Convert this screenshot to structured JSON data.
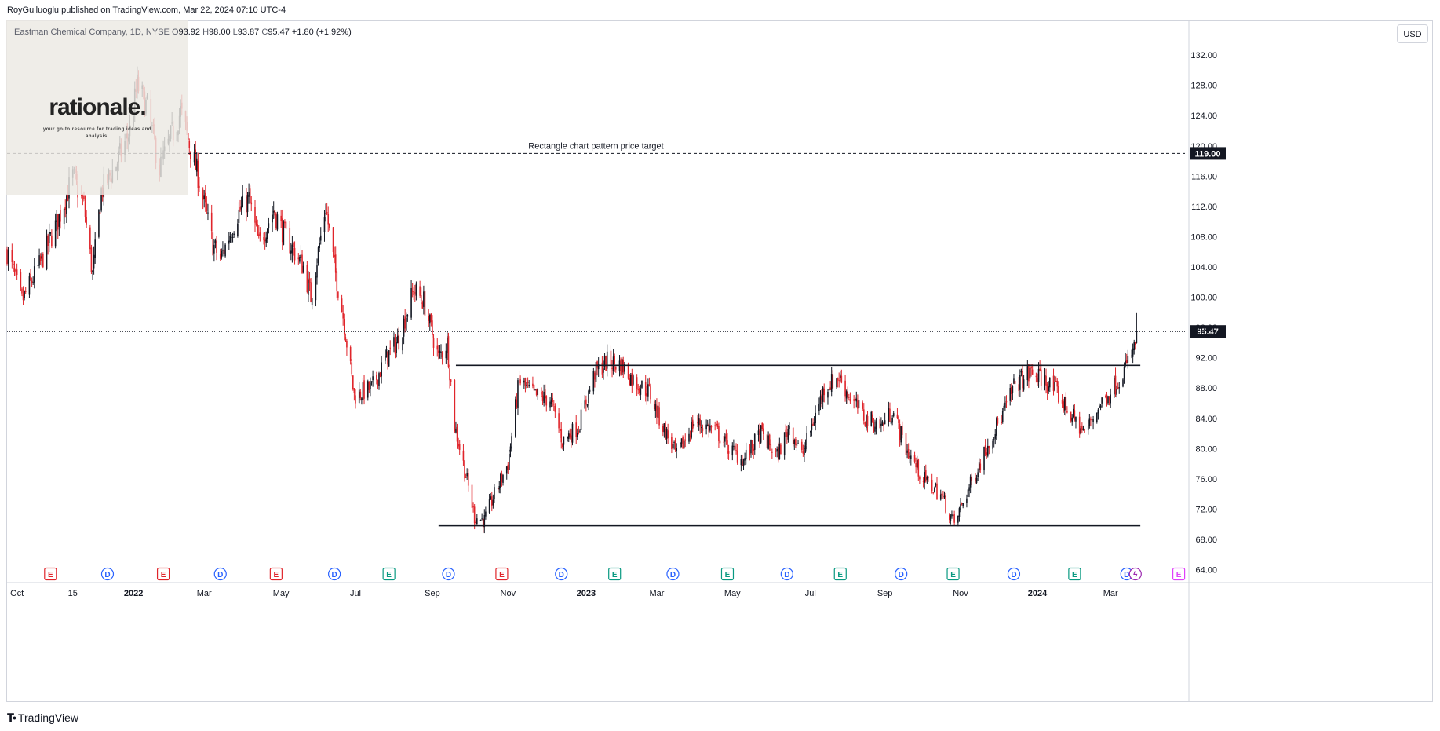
{
  "header": {
    "published": "RoyGulluoglu published on TradingView.com, Mar 22, 2024 07:10 UTC-4"
  },
  "legend": {
    "symbol": "Eastman Chemical Company, 1D, NYSE",
    "open_label": "O",
    "open": "93.92",
    "high_label": "H",
    "high": "98.00",
    "low_label": "L",
    "low": "93.87",
    "close_label": "C",
    "close": "95.47",
    "change": "+1.80 (+1.92%)"
  },
  "watermark": {
    "brand": "rationale.",
    "tagline": "your go-to resource for trading ideas and analysis."
  },
  "currency_button": "USD",
  "footer": {
    "brand": "TradingView"
  },
  "chart_data": {
    "type": "candlestick",
    "title": "Eastman Chemical Company, 1D, NYSE",
    "ylim": [
      62.5,
      134.5
    ],
    "y_ticks": [
      "64.00",
      "68.00",
      "72.00",
      "76.00",
      "80.00",
      "84.00",
      "88.00",
      "92.00",
      "96.00",
      "100.00",
      "104.00",
      "108.00",
      "112.00",
      "116.00",
      "120.00",
      "124.00",
      "128.00",
      "132.00"
    ],
    "x_ticks": [
      {
        "label": "Oct",
        "bold": false,
        "date": "2021-10-01"
      },
      {
        "label": "15",
        "bold": false,
        "date": "2021-11-15"
      },
      {
        "label": "2022",
        "bold": true,
        "date": "2022-01-03"
      },
      {
        "label": "Mar",
        "bold": false,
        "date": "2022-03-01"
      },
      {
        "label": "May",
        "bold": false,
        "date": "2022-05-02"
      },
      {
        "label": "Jul",
        "bold": false,
        "date": "2022-07-01"
      },
      {
        "label": "Sep",
        "bold": false,
        "date": "2022-09-01"
      },
      {
        "label": "Nov",
        "bold": false,
        "date": "2022-11-01"
      },
      {
        "label": "2023",
        "bold": true,
        "date": "2023-01-03"
      },
      {
        "label": "Mar",
        "bold": false,
        "date": "2023-03-01"
      },
      {
        "label": "May",
        "bold": false,
        "date": "2023-05-01"
      },
      {
        "label": "Jul",
        "bold": false,
        "date": "2023-07-03"
      },
      {
        "label": "Sep",
        "bold": false,
        "date": "2023-09-01"
      },
      {
        "label": "Nov",
        "bold": false,
        "date": "2023-11-01"
      },
      {
        "label": "2024",
        "bold": true,
        "date": "2024-01-02"
      },
      {
        "label": "Mar",
        "bold": false,
        "date": "2024-03-01"
      }
    ],
    "price_path": [
      [
        "2021-09-23",
        106.0
      ],
      [
        "2021-10-05",
        99.5
      ],
      [
        "2021-10-20",
        104.5
      ],
      [
        "2021-11-05",
        111.0
      ],
      [
        "2021-11-15",
        116.0
      ],
      [
        "2021-11-24",
        112.0
      ],
      [
        "2021-12-01",
        103.0
      ],
      [
        "2021-12-08",
        114.0
      ],
      [
        "2021-12-20",
        117.5
      ],
      [
        "2021-12-31",
        122.0
      ],
      [
        "2022-01-06",
        128.0
      ],
      [
        "2022-01-14",
        125.0
      ],
      [
        "2022-01-24",
        117.0
      ],
      [
        "2022-02-02",
        121.0
      ],
      [
        "2022-02-10",
        124.5
      ],
      [
        "2022-02-24",
        116.0
      ],
      [
        "2022-03-08",
        107.0
      ],
      [
        "2022-03-14",
        105.0
      ],
      [
        "2022-03-28",
        111.0
      ],
      [
        "2022-04-06",
        113.0
      ],
      [
        "2022-04-14",
        107.0
      ],
      [
        "2022-04-26",
        111.5
      ],
      [
        "2022-05-04",
        108.5
      ],
      [
        "2022-05-20",
        104.0
      ],
      [
        "2022-05-26",
        100.0
      ],
      [
        "2022-06-07",
        112.0
      ],
      [
        "2022-06-14",
        104.0
      ],
      [
        "2022-06-21",
        97.5
      ],
      [
        "2022-06-30",
        87.0
      ],
      [
        "2022-07-14",
        88.0
      ],
      [
        "2022-07-26",
        92.0
      ],
      [
        "2022-08-05",
        94.5
      ],
      [
        "2022-08-17",
        101.0
      ],
      [
        "2022-08-25",
        99.5
      ],
      [
        "2022-09-06",
        92.0
      ],
      [
        "2022-09-13",
        94.0
      ],
      [
        "2022-09-19",
        83.0
      ],
      [
        "2022-09-26",
        78.0
      ],
      [
        "2022-10-05",
        71.0
      ],
      [
        "2022-10-13",
        70.5
      ],
      [
        "2022-10-20",
        73.5
      ],
      [
        "2022-11-01",
        78.0
      ],
      [
        "2022-11-10",
        89.0
      ],
      [
        "2022-11-22",
        87.0
      ],
      [
        "2022-12-05",
        86.5
      ],
      [
        "2022-12-15",
        81.0
      ],
      [
        "2022-12-28",
        83.0
      ],
      [
        "2023-01-10",
        90.0
      ],
      [
        "2023-01-20",
        91.5
      ],
      [
        "2023-02-01",
        91.0
      ],
      [
        "2023-02-10",
        89.0
      ],
      [
        "2023-02-23",
        87.5
      ],
      [
        "2023-03-03",
        84.0
      ],
      [
        "2023-03-17",
        79.0
      ],
      [
        "2023-03-31",
        83.5
      ],
      [
        "2023-04-17",
        82.5
      ],
      [
        "2023-04-28",
        80.0
      ],
      [
        "2023-05-10",
        78.5
      ],
      [
        "2023-05-24",
        82.0
      ],
      [
        "2023-06-06",
        79.0
      ],
      [
        "2023-06-16",
        83.0
      ],
      [
        "2023-06-26",
        79.0
      ],
      [
        "2023-07-06",
        84.0
      ],
      [
        "2023-07-14",
        88.0
      ],
      [
        "2023-07-26",
        89.5
      ],
      [
        "2023-08-03",
        87.0
      ],
      [
        "2023-08-16",
        84.0
      ],
      [
        "2023-08-29",
        83.0
      ],
      [
        "2023-09-07",
        85.0
      ],
      [
        "2023-09-18",
        80.0
      ],
      [
        "2023-10-02",
        76.0
      ],
      [
        "2023-10-16",
        74.0
      ],
      [
        "2023-10-27",
        70.0
      ],
      [
        "2023-11-03",
        73.0
      ],
      [
        "2023-11-15",
        77.5
      ],
      [
        "2023-11-24",
        81.0
      ],
      [
        "2023-12-05",
        84.5
      ],
      [
        "2023-12-15",
        88.5
      ],
      [
        "2023-12-28",
        90.0
      ],
      [
        "2024-01-08",
        89.0
      ],
      [
        "2024-01-17",
        87.5
      ],
      [
        "2024-01-31",
        84.0
      ],
      [
        "2024-02-09",
        82.0
      ],
      [
        "2024-02-20",
        85.5
      ],
      [
        "2024-03-05",
        88.5
      ],
      [
        "2024-03-14",
        91.0
      ],
      [
        "2024-03-21",
        93.67
      ],
      [
        "2024-03-22",
        95.47
      ]
    ],
    "last_candle": {
      "date": "2024-03-22",
      "open": 93.92,
      "high": 98.0,
      "low": 93.87,
      "close": 95.47
    },
    "levels": [
      {
        "name": "price-target-line",
        "value": 119.0,
        "style": "dashed",
        "label": "Rectangle chart pattern price target",
        "badge": "119.00",
        "from": "2021-09-23",
        "to": "2024-04-30"
      },
      {
        "name": "last-price-line",
        "value": 95.47,
        "style": "dotted",
        "badge": "95.47",
        "from": "2021-09-23",
        "to": "2024-04-30"
      },
      {
        "name": "rectangle-top-line",
        "value": 91.0,
        "style": "solid",
        "from": "2022-09-20",
        "to": "2024-03-25"
      },
      {
        "name": "rectangle-bottom-line",
        "value": 69.8,
        "style": "solid",
        "from": "2022-09-06",
        "to": "2024-03-25"
      }
    ],
    "events": [
      {
        "type": "E",
        "date": "2021-10-28"
      },
      {
        "type": "D",
        "date": "2021-12-13"
      },
      {
        "type": "E",
        "date": "2022-01-27"
      },
      {
        "type": "D",
        "date": "2022-03-14"
      },
      {
        "type": "E",
        "date": "2022-04-28"
      },
      {
        "type": "D",
        "date": "2022-06-14"
      },
      {
        "type": "E",
        "date": "2022-07-28"
      },
      {
        "type": "D",
        "date": "2022-09-14"
      },
      {
        "type": "E",
        "date": "2022-10-27"
      },
      {
        "type": "D",
        "date": "2022-12-14"
      },
      {
        "type": "E",
        "date": "2023-01-26"
      },
      {
        "type": "D",
        "date": "2023-03-14"
      },
      {
        "type": "E",
        "date": "2023-04-27"
      },
      {
        "type": "D",
        "date": "2023-06-14"
      },
      {
        "type": "E",
        "date": "2023-07-27"
      },
      {
        "type": "D",
        "date": "2023-09-14"
      },
      {
        "type": "E",
        "date": "2023-10-26"
      },
      {
        "type": "D",
        "date": "2023-12-14"
      },
      {
        "type": "E",
        "date": "2024-02-01"
      },
      {
        "type": "D",
        "date": "2024-03-14"
      },
      {
        "type": "S",
        "date": "2024-03-21"
      },
      {
        "type": "E",
        "date": "2024-04-25"
      }
    ],
    "colors": {
      "up": "#131722",
      "down": "#e0252b",
      "earnings_down": "#e0252b",
      "earnings_up": "#089981",
      "dividend": "#2962ff",
      "split": "#9c27b0",
      "future": "#e040fb"
    }
  }
}
